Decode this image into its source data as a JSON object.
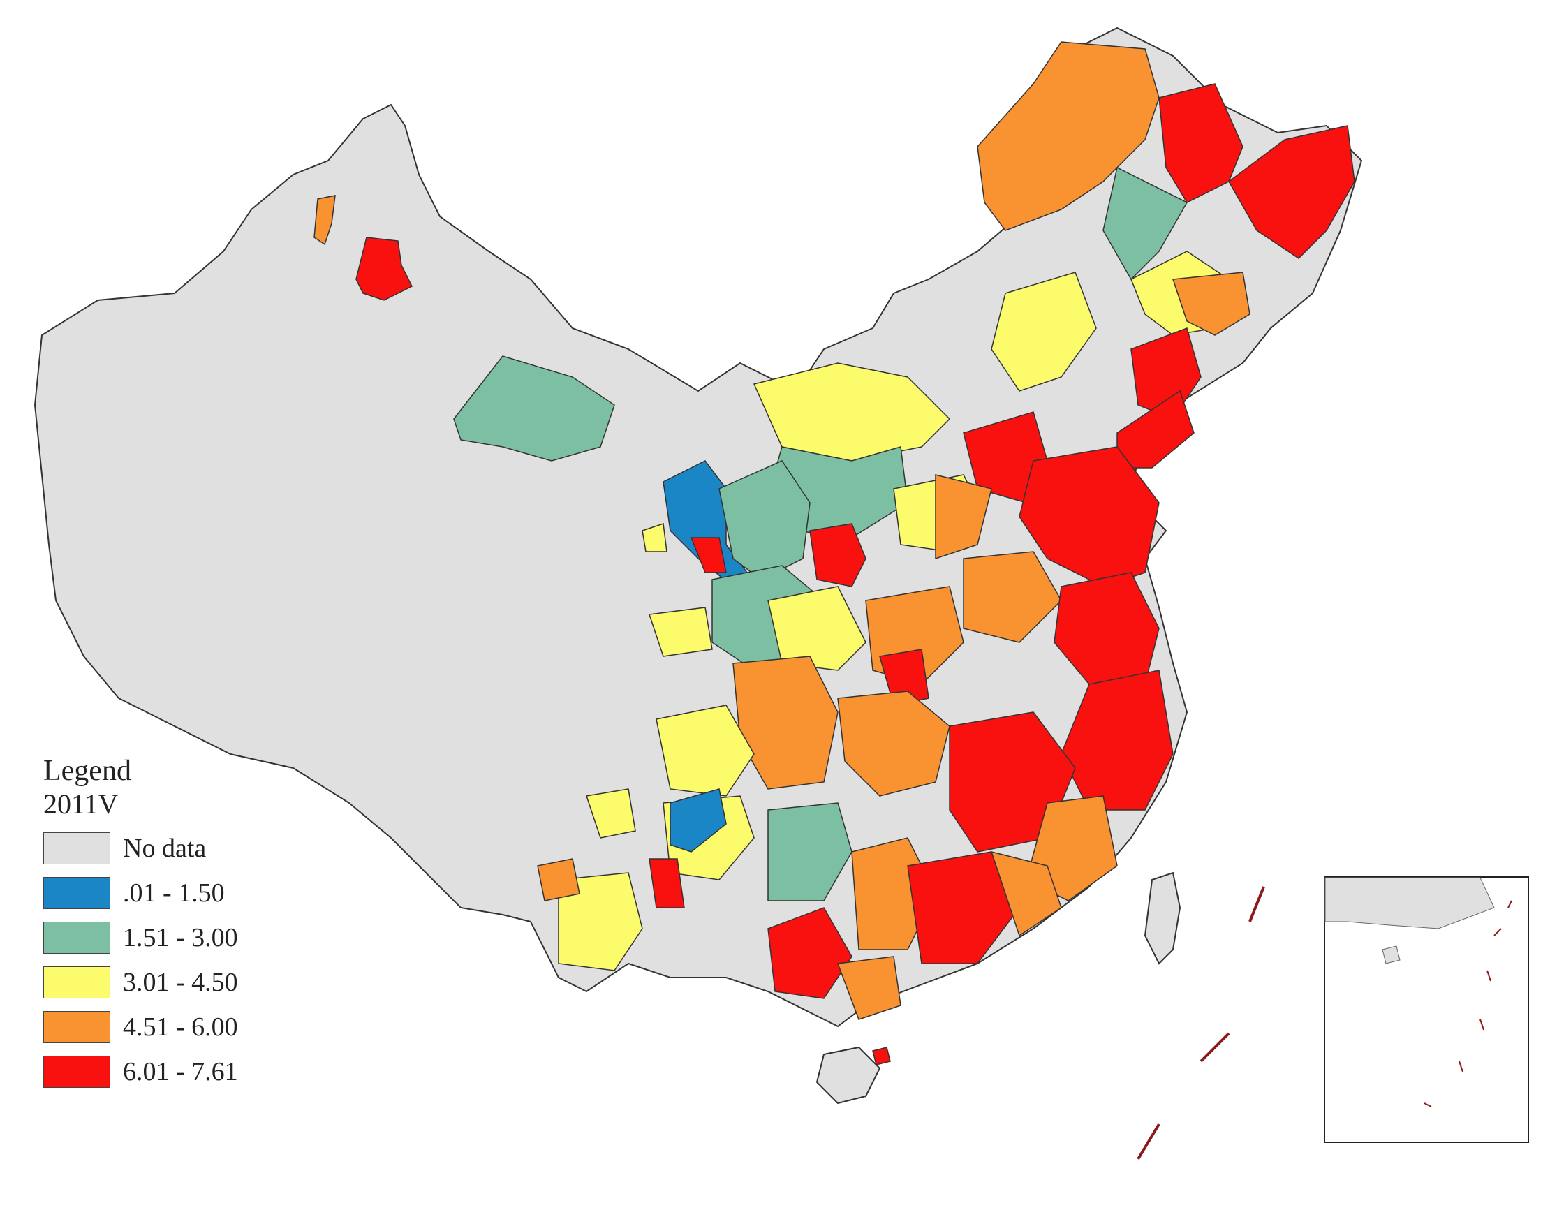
{
  "legend": {
    "title": "Legend",
    "subtitle": "2011V",
    "classes": [
      {
        "label": "No data",
        "color": "#e0e0e0"
      },
      {
        "label": ".01 - 1.50",
        "color": "#1a86c6"
      },
      {
        "label": "1.51 - 3.00",
        "color": "#7cbfa2"
      },
      {
        "label": "3.01 - 4.50",
        "color": "#fbfb6c"
      },
      {
        "label": "4.51 - 6.00",
        "color": "#f99331"
      },
      {
        "label": "6.01 - 7.61",
        "color": "#f8110f"
      }
    ]
  },
  "map": {
    "colors": {
      "no_data": "#e0e0e0",
      "boundary": "#333333",
      "nine_dash_line": "#8b1a1a"
    }
  }
}
